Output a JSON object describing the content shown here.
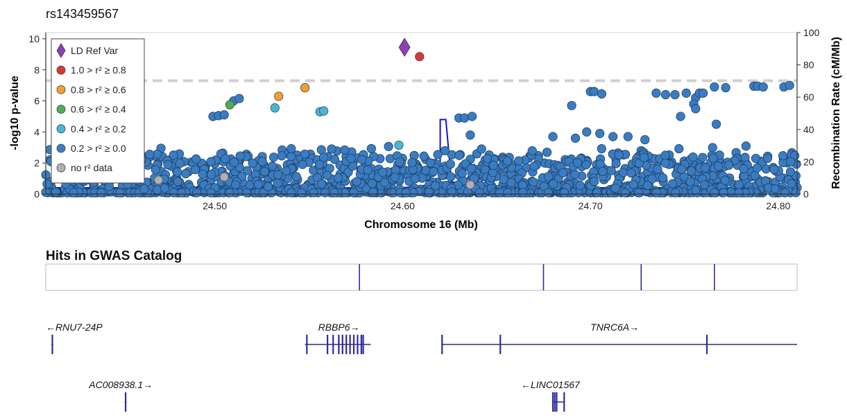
{
  "chart_data": {
    "type": "scatter",
    "title": "rs143459567",
    "xlabel": "Chromosome 16 (Mb)",
    "ylabel_left": "-log10 p-value",
    "ylabel_right": "Recombination Rate (cM/Mb)",
    "xlim": [
      24.41,
      24.81
    ],
    "ylim_left": [
      0,
      10.4
    ],
    "ylim_right": [
      0,
      100
    ],
    "x_ticks": [
      24.5,
      24.6,
      24.7,
      24.8
    ],
    "x_tick_labels": [
      "24.50",
      "24.60",
      "24.70",
      "24.80"
    ],
    "y_ticks_left": [
      0,
      2,
      4,
      6,
      8,
      10
    ],
    "y_ticks_right": [
      0,
      20,
      40,
      60,
      80,
      100
    ],
    "significance_line": 7.3,
    "legend": {
      "placement": "top-left",
      "entries": [
        {
          "label": "LD Ref Var",
          "color": "#8e3fb3",
          "shape": "diamond"
        },
        {
          "label": "1.0 > r² ≥ 0.8",
          "color": "#d63a34",
          "shape": "circle"
        },
        {
          "label": "0.8 > r² ≥ 0.6",
          "color": "#ef9e35",
          "shape": "circle"
        },
        {
          "label": "0.6 > r² ≥ 0.4",
          "color": "#4fad55",
          "shape": "circle"
        },
        {
          "label": "0.4 > r² ≥ 0.2",
          "color": "#45b8d9",
          "shape": "circle"
        },
        {
          "label": "0.2 > r² ≥ 0.0",
          "color": "#3a7cc2",
          "shape": "circle"
        },
        {
          "label": "no r² data",
          "color": "#b0b0b0",
          "shape": "circle"
        }
      ]
    },
    "ref_variant": {
      "x": 24.601,
      "y": 9.45
    },
    "highlighted_points": [
      {
        "x": 24.609,
        "y": 8.85,
        "ld": "1.0 > r² ≥ 0.8"
      },
      {
        "x": 24.534,
        "y": 6.3,
        "ld": "0.8 > r² ≥ 0.6"
      },
      {
        "x": 24.548,
        "y": 6.85,
        "ld": "0.8 > r² ≥ 0.6"
      },
      {
        "x": 24.508,
        "y": 5.75,
        "ld": "0.6 > r² ≥ 0.4"
      },
      {
        "x": 24.532,
        "y": 5.55,
        "ld": "0.4 > r² ≥ 0.2"
      },
      {
        "x": 24.556,
        "y": 5.3,
        "ld": "0.4 > r² ≥ 0.2"
      },
      {
        "x": 24.558,
        "y": 5.35,
        "ld": "0.4 > r² ≥ 0.2"
      },
      {
        "x": 24.598,
        "y": 3.15,
        "ld": "0.4 > r² ≥ 0.2"
      }
    ],
    "low_ld_points": [
      {
        "x": 24.499,
        "y": 5.0
      },
      {
        "x": 24.502,
        "y": 5.05
      },
      {
        "x": 24.505,
        "y": 5.1
      },
      {
        "x": 24.51,
        "y": 6.0
      },
      {
        "x": 24.513,
        "y": 6.15
      },
      {
        "x": 24.63,
        "y": 4.9
      },
      {
        "x": 24.633,
        "y": 4.9
      },
      {
        "x": 24.637,
        "y": 5.0
      },
      {
        "x": 24.636,
        "y": 3.8
      },
      {
        "x": 24.642,
        "y": 2.9
      },
      {
        "x": 24.69,
        "y": 5.7
      },
      {
        "x": 24.7,
        "y": 6.6
      },
      {
        "x": 24.702,
        "y": 6.6
      },
      {
        "x": 24.706,
        "y": 6.45
      },
      {
        "x": 24.72,
        "y": 3.7
      },
      {
        "x": 24.729,
        "y": 3.5
      },
      {
        "x": 24.735,
        "y": 6.5
      },
      {
        "x": 24.74,
        "y": 6.4
      },
      {
        "x": 24.745,
        "y": 6.4
      },
      {
        "x": 24.751,
        "y": 6.5
      },
      {
        "x": 24.756,
        "y": 6.2
      },
      {
        "x": 24.758,
        "y": 6.5
      },
      {
        "x": 24.76,
        "y": 6.5
      },
      {
        "x": 24.755,
        "y": 5.8
      },
      {
        "x": 24.756,
        "y": 5.5
      },
      {
        "x": 24.748,
        "y": 5.0
      },
      {
        "x": 24.767,
        "y": 4.5
      },
      {
        "x": 24.766,
        "y": 6.9
      },
      {
        "x": 24.772,
        "y": 6.85
      },
      {
        "x": 24.787,
        "y": 6.95
      },
      {
        "x": 24.789,
        "y": 6.95
      },
      {
        "x": 24.792,
        "y": 6.9
      },
      {
        "x": 24.803,
        "y": 6.9
      },
      {
        "x": 24.806,
        "y": 7.0
      },
      {
        "x": 24.705,
        "y": 3.9
      },
      {
        "x": 24.712,
        "y": 3.7
      },
      {
        "x": 24.68,
        "y": 3.7
      },
      {
        "x": 24.692,
        "y": 3.6
      },
      {
        "x": 24.698,
        "y": 4.0
      }
    ],
    "low_ld_bulk_note": "",
    "recombination": [
      [
        24.41,
        0.4
      ],
      [
        24.49,
        0.4
      ],
      [
        24.5,
        1.4
      ],
      [
        24.505,
        1.2
      ],
      [
        24.51,
        0.6
      ],
      [
        24.52,
        0.4
      ],
      [
        24.6,
        0.4
      ],
      [
        24.615,
        0.6
      ],
      [
        24.62,
        1.0
      ],
      [
        24.62,
        4.8
      ],
      [
        24.623,
        4.8
      ],
      [
        24.626,
        0.8
      ],
      [
        24.632,
        0.6
      ],
      [
        24.635,
        1.1
      ],
      [
        24.638,
        1.9
      ],
      [
        24.64,
        1.6
      ],
      [
        24.643,
        0.5
      ],
      [
        24.7,
        0.4
      ],
      [
        24.81,
        0.4
      ]
    ]
  },
  "gwas_catalog": {
    "title": "Hits in GWAS Catalog",
    "hits": [
      24.577,
      24.675,
      24.727,
      24.766
    ]
  },
  "genes": [
    {
      "name": "←RNU7-24P",
      "start": 24.413,
      "end": 24.414,
      "row": 0,
      "exons": [
        24.4135
      ],
      "label_x": 24.41
    },
    {
      "name": "RBBP6→",
      "start": 24.548,
      "end": 24.583,
      "row": 0,
      "exons": [
        24.549,
        24.56,
        24.563,
        24.566,
        24.568,
        24.57,
        24.572,
        24.574,
        24.576,
        24.578,
        24.579
      ],
      "label_x": 24.555
    },
    {
      "name": "TNRC6A→",
      "start": 24.621,
      "end": 24.81,
      "row": 0,
      "exons": [
        24.621,
        24.652,
        24.762
      ],
      "label_x": 24.7
    },
    {
      "name": "AC008938.1→",
      "start": 24.452,
      "end": 24.453,
      "row": 1,
      "exons": [
        24.4525
      ],
      "label_x": 24.433
    },
    {
      "name": "←LINC01567",
      "start": 24.68,
      "end": 24.686,
      "row": 1,
      "exons": [
        24.68,
        24.681,
        24.682,
        24.686
      ],
      "label_x": 24.663
    }
  ]
}
